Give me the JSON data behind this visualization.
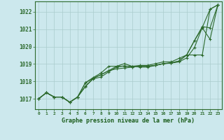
{
  "background_color": "#cce8ed",
  "grid_color": "#aacccc",
  "line_color": "#2d6a2d",
  "marker_color": "#2d6a2d",
  "xlabel": "Graphe pression niveau de la mer (hPa)",
  "xlim": [
    -0.5,
    23.5
  ],
  "ylim": [
    1016.4,
    1022.6
  ],
  "yticks": [
    1017,
    1018,
    1019,
    1020,
    1021,
    1022
  ],
  "xtick_labels": [
    "0",
    "1",
    "2",
    "3",
    "4",
    "5",
    "6",
    "7",
    "8",
    "9",
    "10",
    "11",
    "12",
    "13",
    "14",
    "15",
    "16",
    "17",
    "18",
    "19",
    "20",
    "21",
    "22",
    "23"
  ],
  "series": [
    {
      "x": [
        0,
        1,
        2,
        3,
        4,
        5,
        6,
        7,
        8,
        9,
        10,
        11,
        12,
        13,
        14,
        15,
        16,
        17,
        18,
        19,
        20,
        21,
        22,
        23
      ],
      "y": [
        1017.0,
        1017.35,
        1017.1,
        1017.1,
        1016.8,
        1017.1,
        1017.7,
        1018.15,
        1018.25,
        1018.55,
        1018.82,
        1018.9,
        1018.82,
        1018.87,
        1018.87,
        1018.92,
        1019.02,
        1019.05,
        1019.12,
        1019.35,
        1019.95,
        1021.1,
        1022.15,
        1022.4
      ]
    },
    {
      "x": [
        0,
        1,
        2,
        3,
        4,
        5,
        6,
        7,
        8,
        9,
        10,
        11,
        12,
        13,
        14,
        15,
        16,
        17,
        18,
        19,
        20,
        21,
        22,
        23
      ],
      "y": [
        1017.0,
        1017.35,
        1017.1,
        1017.1,
        1016.8,
        1017.1,
        1017.72,
        1018.18,
        1018.38,
        1018.62,
        1018.87,
        1019.02,
        1018.87,
        1018.82,
        1018.82,
        1018.92,
        1019.02,
        1019.05,
        1019.17,
        1019.52,
        1020.35,
        1021.08,
        1020.42,
        1022.4
      ]
    },
    {
      "x": [
        0,
        1,
        2,
        3,
        4,
        5,
        6,
        7,
        8,
        9,
        10,
        11,
        12,
        13,
        14,
        15,
        16,
        17,
        18,
        19,
        20,
        21,
        22,
        23
      ],
      "y": [
        1017.0,
        1017.35,
        1017.1,
        1017.1,
        1016.8,
        1017.1,
        1017.92,
        1018.22,
        1018.48,
        1018.87,
        1018.87,
        1018.87,
        1018.87,
        1018.92,
        1018.92,
        1019.02,
        1019.12,
        1019.12,
        1019.32,
        1019.52,
        1019.52,
        1019.52,
        1022.15,
        1022.4
      ]
    },
    {
      "x": [
        0,
        1,
        2,
        3,
        4,
        5,
        6,
        7,
        8,
        9,
        10,
        11,
        12,
        13,
        14,
        15,
        16,
        17,
        18,
        19,
        20,
        21,
        22,
        23
      ],
      "y": [
        1017.0,
        1017.35,
        1017.1,
        1017.1,
        1016.8,
        1017.1,
        1017.92,
        1018.18,
        1018.38,
        1018.62,
        1018.72,
        1018.77,
        1018.82,
        1018.87,
        1018.87,
        1018.92,
        1019.02,
        1019.07,
        1019.17,
        1019.52,
        1020.35,
        1021.15,
        1021.08,
        1022.4
      ]
    }
  ]
}
